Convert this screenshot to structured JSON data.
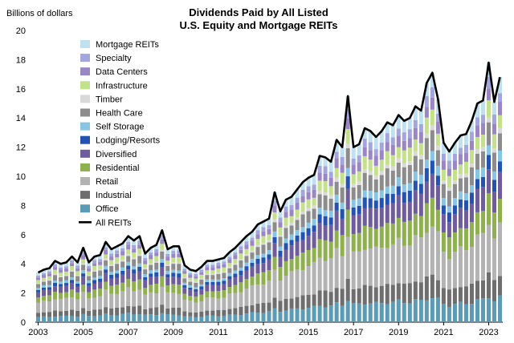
{
  "chart_data": {
    "type": "bar",
    "stacked": true,
    "title": "Dividends Paid by All Listed",
    "subtitle": "U.S. Equity and Mortgage REITs",
    "ylabel": "Billions of dollars",
    "xlabel": "",
    "ylim": [
      0,
      20
    ],
    "y_ticks": [
      "0",
      "2",
      "4",
      "6",
      "8",
      "10",
      "12",
      "14",
      "16",
      "18",
      "20"
    ],
    "x_tick_labels": [
      "2003",
      "2005",
      "2007",
      "2009",
      "2011",
      "2013",
      "2015",
      "2017",
      "2019",
      "2021",
      "2023"
    ],
    "legend_position": "top-left",
    "series": [
      {
        "name": "Office",
        "color": "#5b9bb5"
      },
      {
        "name": "Industrial",
        "color": "#6e6e6e"
      },
      {
        "name": "Retail",
        "color": "#b3b3b3"
      },
      {
        "name": "Residential",
        "color": "#8fb04f"
      },
      {
        "name": "Diversified",
        "color": "#6e5c9c"
      },
      {
        "name": "Lodging/Resorts",
        "color": "#2352b0"
      },
      {
        "name": "Self Storage",
        "color": "#86c5e3"
      },
      {
        "name": "Health Care",
        "color": "#8c8c8c"
      },
      {
        "name": "Timber",
        "color": "#d9d9d9"
      },
      {
        "name": "Infrastructure",
        "color": "#c3e08a"
      },
      {
        "name": "Data Centers",
        "color": "#9a86c4"
      },
      {
        "name": "Specialty",
        "color": "#a3a6dc"
      },
      {
        "name": "Mortgage REITs",
        "color": "#bfe0ef"
      }
    ],
    "line_series": {
      "name": "All REITs",
      "color": "#000000"
    },
    "x_start_year": 2003,
    "totals": [
      3.4,
      3.6,
      3.7,
      4.2,
      4.0,
      4.1,
      4.5,
      4.1,
      5.1,
      4.1,
      4.5,
      4.6,
      5.5,
      5.0,
      5.2,
      5.4,
      5.9,
      5.6,
      5.9,
      4.7,
      5.1,
      5.3,
      6.3,
      5.0,
      5.2,
      5.2,
      3.9,
      3.6,
      3.5,
      3.8,
      4.2,
      4.2,
      4.3,
      4.4,
      4.8,
      5.1,
      5.5,
      5.9,
      6.2,
      6.7,
      6.9,
      7.1,
      8.9,
      7.6,
      8.4,
      8.6,
      9.1,
      9.6,
      9.9,
      10.1,
      11.4,
      11.3,
      11.0,
      12.5,
      12.0,
      15.5,
      12.0,
      12.2,
      13.3,
      13.1,
      12.7,
      13.1,
      13.7,
      13.5,
      14.2,
      13.8,
      14.0,
      14.8,
      14.5,
      16.4,
      17.1,
      15.3,
      12.3,
      11.7,
      12.3,
      12.8,
      12.9,
      13.8,
      15.0,
      15.2,
      17.8,
      15.1,
      16.8
    ],
    "segment_shares": [
      0.1,
      0.09,
      0.2,
      0.11,
      0.1,
      0.05,
      0.04,
      0.08,
      0.02,
      0.06,
      0.05,
      0.04,
      0.06
    ]
  }
}
